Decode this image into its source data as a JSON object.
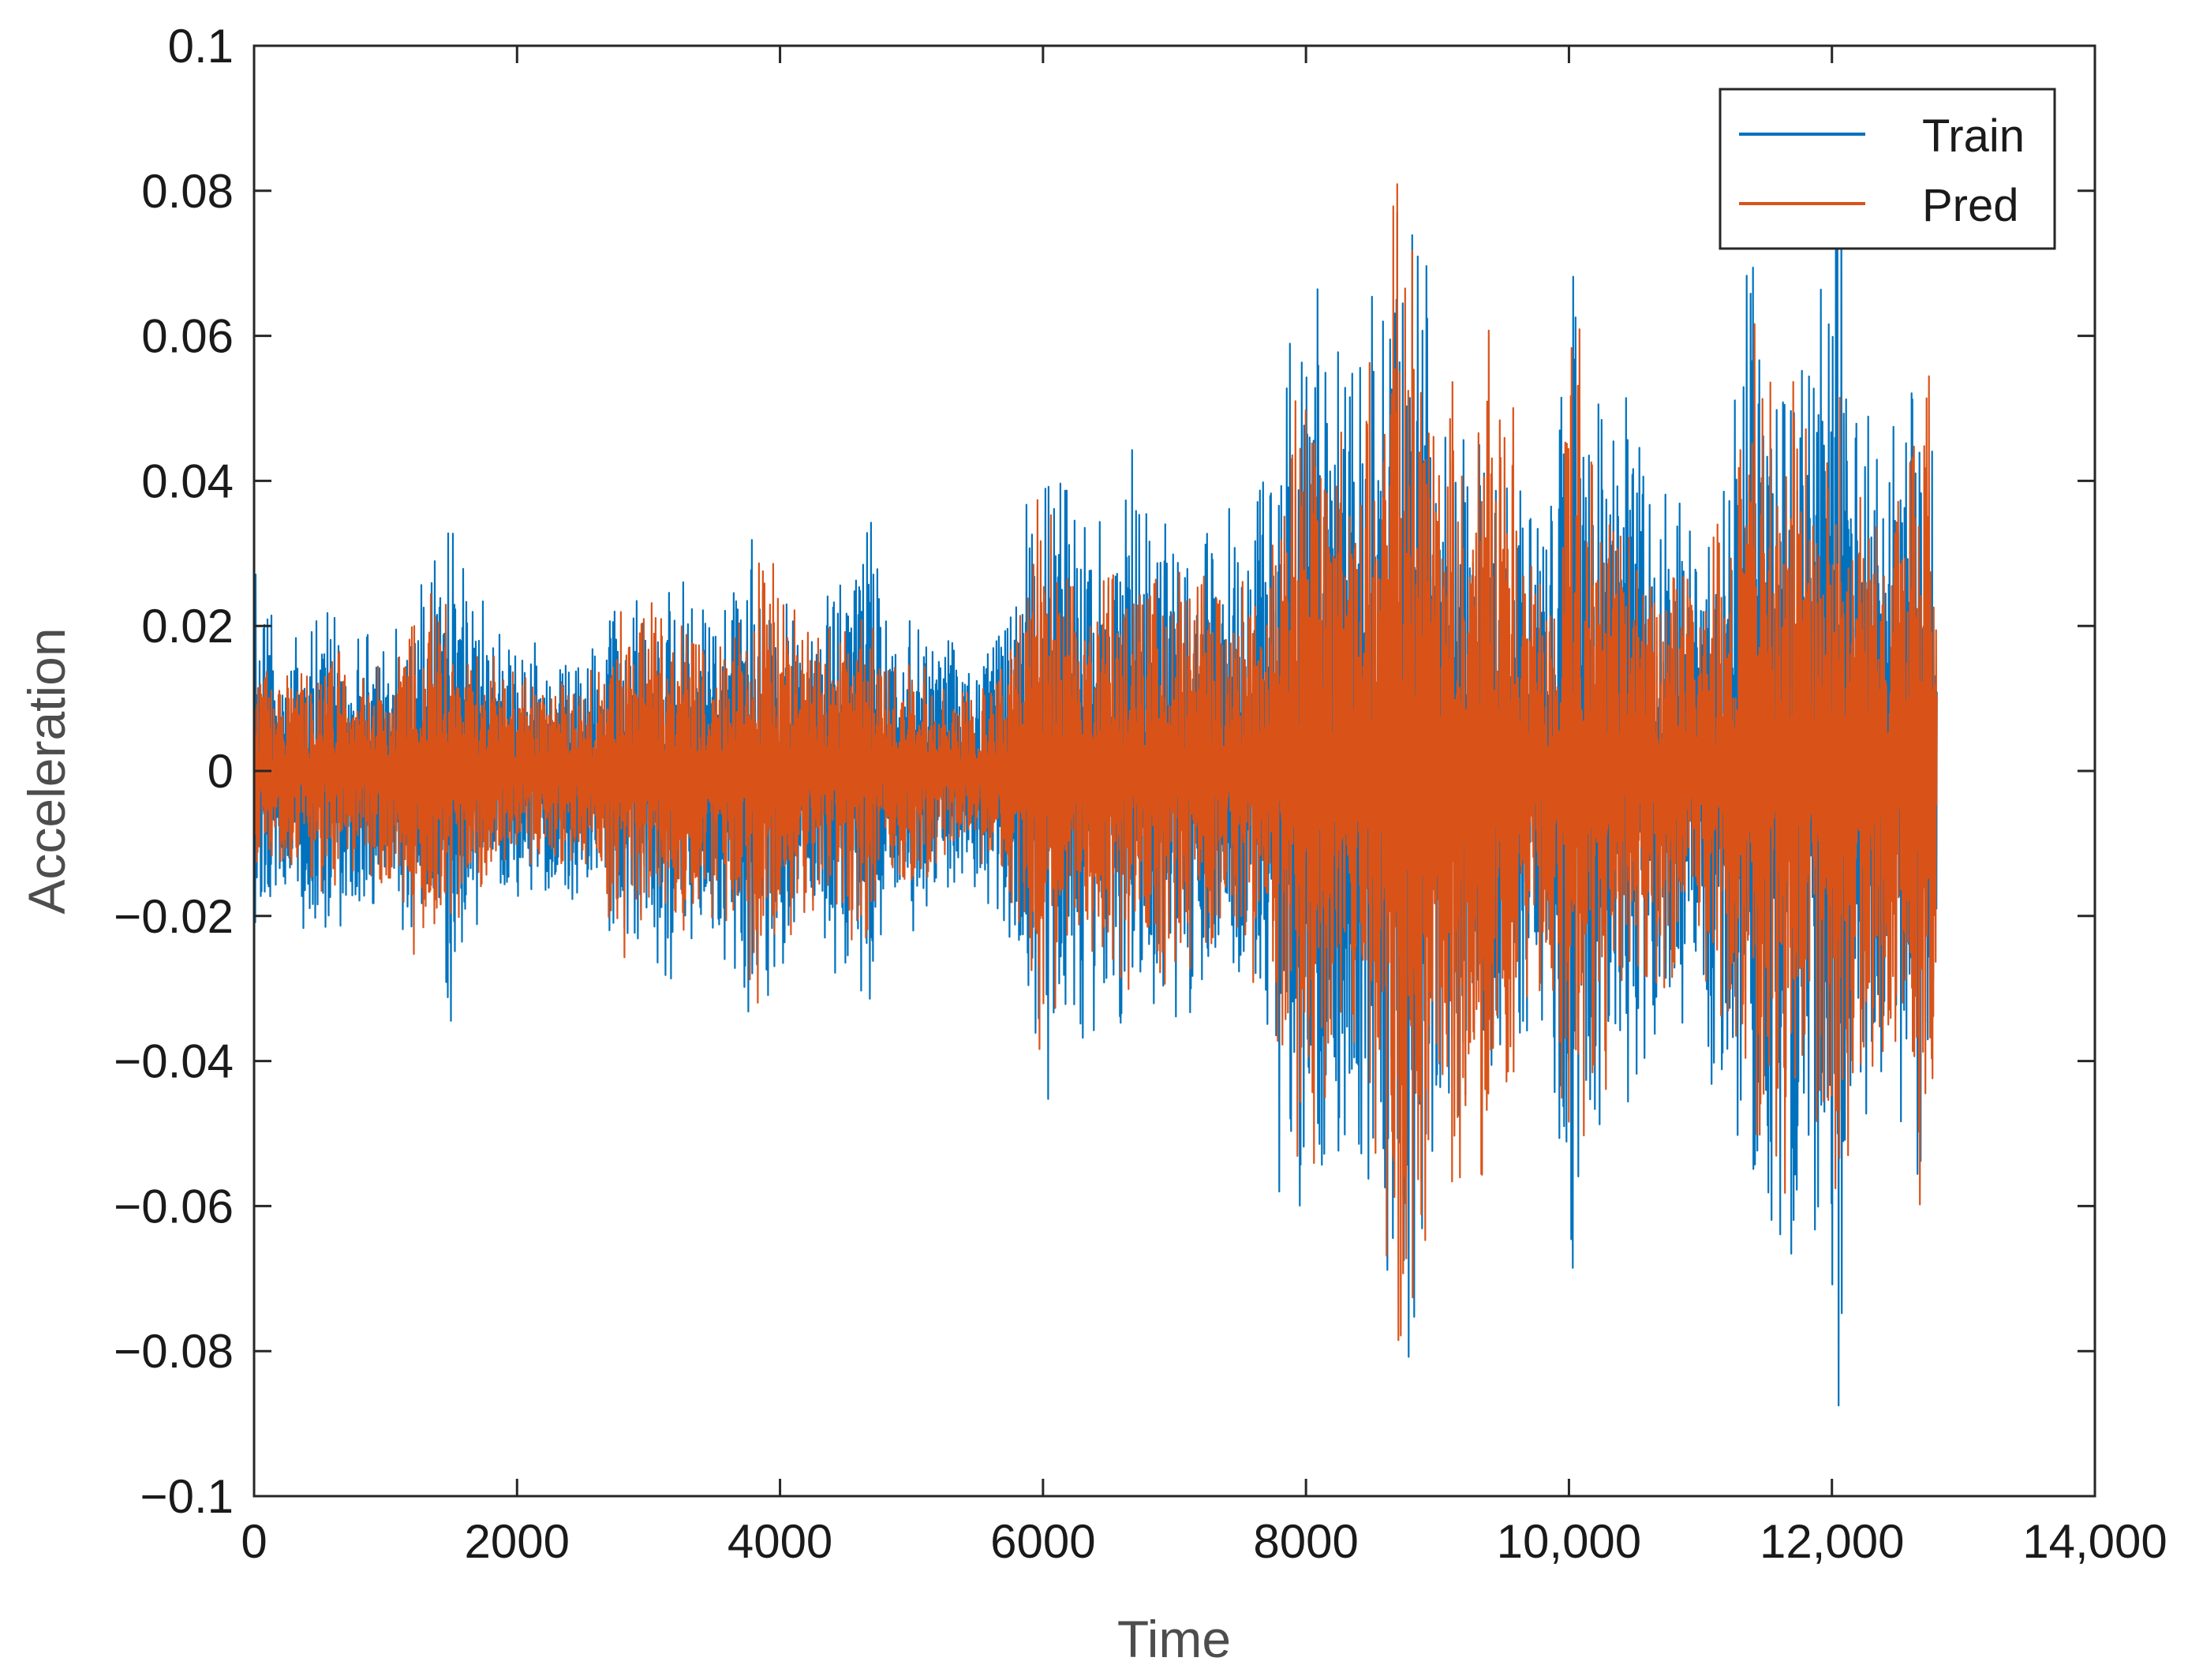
{
  "chart_data": {
    "type": "line",
    "xlabel": "Time",
    "ylabel": "Acceleration",
    "xlim": [
      0,
      14000
    ],
    "ylim": [
      -0.1,
      0.1
    ],
    "x_ticks": [
      {
        "value": 0,
        "label": "0"
      },
      {
        "value": 2000,
        "label": "2000"
      },
      {
        "value": 4000,
        "label": "4000"
      },
      {
        "value": 6000,
        "label": "6000"
      },
      {
        "value": 8000,
        "label": "8000"
      },
      {
        "value": 10000,
        "label": "10,000"
      },
      {
        "value": 12000,
        "label": "12,000"
      },
      {
        "value": 14000,
        "label": "14,000"
      }
    ],
    "y_ticks": [
      {
        "value": 0.1,
        "label": "0.1"
      },
      {
        "value": 0.08,
        "label": "0.08"
      },
      {
        "value": 0.06,
        "label": "0.06"
      },
      {
        "value": 0.04,
        "label": "0.04"
      },
      {
        "value": 0.02,
        "label": "0.02"
      },
      {
        "value": 0,
        "label": "0"
      },
      {
        "value": -0.02,
        "label": "−0.02"
      },
      {
        "value": -0.04,
        "label": "−0.04"
      },
      {
        "value": -0.06,
        "label": "−0.06"
      },
      {
        "value": -0.08,
        "label": "−0.08"
      },
      {
        "value": -0.1,
        "label": "−0.1"
      }
    ],
    "grid": false,
    "legend_position": "top-right",
    "colors": {
      "Train": "#0072BD",
      "Pred": "#D95319"
    },
    "series": [
      {
        "name": "Train",
        "x": [
          0,
          200,
          400,
          600,
          800,
          1000,
          1200,
          1400,
          1500,
          1600,
          1700,
          1800,
          2000,
          2200,
          2400,
          2600,
          2800,
          3000,
          3200,
          3400,
          3600,
          3800,
          4000,
          4200,
          4400,
          4600,
          4700,
          4800,
          5000,
          5200,
          5400,
          5600,
          5800,
          5950,
          6100,
          6300,
          6500,
          6650,
          6800,
          7000,
          7200,
          7400,
          7600,
          7800,
          8000,
          8200,
          8400,
          8550,
          8700,
          8800,
          8950,
          9100,
          9300,
          9500,
          9700,
          9850,
          10000,
          10050,
          10150,
          10300,
          10450,
          10600,
          10800,
          11000,
          11200,
          11300,
          11400,
          11500,
          11650,
          11800,
          11950,
          12050,
          12100,
          12200,
          12350,
          12500,
          12650,
          12750,
          12800
        ],
        "amplitude": [
          0.033,
          0.022,
          0.023,
          0.024,
          0.022,
          0.022,
          0.026,
          0.03,
          0.037,
          0.028,
          0.033,
          0.022,
          0.02,
          0.018,
          0.02,
          0.02,
          0.03,
          0.028,
          0.033,
          0.025,
          0.03,
          0.039,
          0.03,
          0.025,
          0.028,
          0.035,
          0.04,
          0.022,
          0.025,
          0.02,
          0.018,
          0.02,
          0.03,
          0.05,
          0.047,
          0.04,
          0.04,
          0.05,
          0.04,
          0.04,
          0.035,
          0.04,
          0.035,
          0.06,
          0.079,
          0.06,
          0.067,
          0.07,
          0.095,
          0.088,
          0.065,
          0.055,
          0.05,
          0.045,
          0.04,
          0.042,
          0.083,
          0.07,
          0.06,
          0.058,
          0.055,
          0.045,
          0.04,
          0.04,
          0.05,
          0.06,
          0.085,
          0.07,
          0.075,
          0.065,
          0.07,
          0.095,
          0.09,
          0.06,
          0.05,
          0.055,
          0.072,
          0.06,
          0.03
        ]
      },
      {
        "name": "Pred",
        "x": [
          0,
          200,
          400,
          600,
          800,
          1000,
          1200,
          1400,
          1500,
          1600,
          1700,
          1800,
          2000,
          2200,
          2400,
          2600,
          2800,
          3000,
          3200,
          3400,
          3600,
          3800,
          4000,
          4200,
          4400,
          4600,
          4700,
          4800,
          5000,
          5200,
          5400,
          5600,
          5800,
          5950,
          6100,
          6300,
          6500,
          6650,
          6800,
          7000,
          7200,
          7400,
          7600,
          7800,
          8000,
          8200,
          8400,
          8550,
          8700,
          8800,
          8950,
          9100,
          9300,
          9500,
          9700,
          9850,
          10000,
          10050,
          10150,
          10300,
          10450,
          10600,
          10800,
          11000,
          11200,
          11300,
          11400,
          11500,
          11650,
          11800,
          11950,
          12050,
          12100,
          12200,
          12350,
          12500,
          12650,
          12750,
          12800
        ],
        "amplitude": [
          0.015,
          0.015,
          0.016,
          0.018,
          0.016,
          0.016,
          0.028,
          0.025,
          0.025,
          0.022,
          0.02,
          0.016,
          0.015,
          0.014,
          0.015,
          0.015,
          0.028,
          0.025,
          0.025,
          0.02,
          0.025,
          0.035,
          0.028,
          0.022,
          0.022,
          0.025,
          0.024,
          0.016,
          0.018,
          0.014,
          0.013,
          0.015,
          0.022,
          0.04,
          0.035,
          0.03,
          0.03,
          0.033,
          0.03,
          0.03,
          0.03,
          0.03,
          0.03,
          0.045,
          0.065,
          0.045,
          0.06,
          0.06,
          0.095,
          0.085,
          0.06,
          0.064,
          0.058,
          0.068,
          0.033,
          0.03,
          0.07,
          0.075,
          0.05,
          0.045,
          0.04,
          0.035,
          0.03,
          0.03,
          0.04,
          0.045,
          0.07,
          0.06,
          0.065,
          0.055,
          0.06,
          0.07,
          0.06,
          0.05,
          0.04,
          0.045,
          0.06,
          0.06,
          0.035
        ]
      }
    ]
  }
}
